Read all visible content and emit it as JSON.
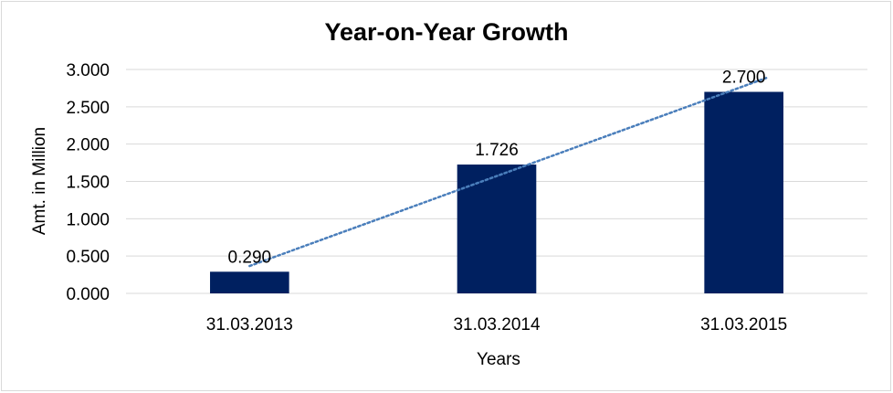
{
  "chart_data": {
    "type": "bar",
    "title": "Year-on-Year Growth",
    "xlabel": "Years",
    "ylabel": "Amt. in Million",
    "categories": [
      "31.03.2013",
      "31.03.2014",
      "31.03.2015"
    ],
    "values": [
      0.29,
      1.726,
      2.7
    ],
    "data_labels": [
      "0.290",
      "1.726",
      "2.700"
    ],
    "yticks": [
      0,
      0.5,
      1,
      1.5,
      2,
      2.5,
      3
    ],
    "ytick_labels": [
      "0.000",
      "0.500",
      "1.000",
      "1.500",
      "2.000",
      "2.500",
      "3.000"
    ],
    "ylim": [
      0,
      3
    ],
    "grid": true,
    "trendline": {
      "type": "linear",
      "style": "dotted",
      "color": "#4a7ebb"
    },
    "colors": {
      "bar": "#002060",
      "grid": "#d9d9d9"
    }
  }
}
